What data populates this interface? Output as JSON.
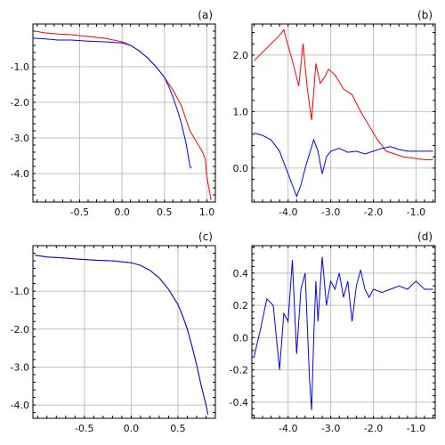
{
  "chart_data": [
    {
      "label": "(a)",
      "type": "line",
      "xlim": [
        -1.05,
        1.1
      ],
      "ylim": [
        -4.8,
        0.2
      ],
      "xticks": [
        -0.5,
        0.0,
        0.5,
        1.0
      ],
      "xtick_labels": [
        "-0.5",
        "0.0",
        "0.5",
        "1.0"
      ],
      "yticks": [
        -1.0,
        -2.0,
        -3.0,
        -4.0
      ],
      "ytick_labels": [
        "-1.0",
        "-2.0",
        "-3.0",
        "-4.0"
      ],
      "grid": true,
      "series": [
        {
          "color": "#ff0000",
          "x": [
            -1.03,
            -0.9,
            -0.75,
            -0.6,
            -0.4,
            -0.2,
            0.0,
            0.1,
            0.2,
            0.3,
            0.4,
            0.5,
            0.6,
            0.7,
            0.75,
            0.8,
            0.85,
            0.9,
            0.95,
            0.98,
            1.0,
            1.05
          ],
          "y": [
            0.0,
            -0.05,
            -0.08,
            -0.1,
            -0.15,
            -0.2,
            -0.3,
            -0.4,
            -0.55,
            -0.75,
            -1.0,
            -1.3,
            -1.65,
            -2.1,
            -2.45,
            -2.8,
            -3.0,
            -3.2,
            -3.4,
            -3.6,
            -4.1,
            -4.75
          ]
        },
        {
          "color": "#0000ff",
          "x": [
            -1.03,
            -0.9,
            -0.75,
            -0.6,
            -0.4,
            -0.2,
            0.0,
            0.1,
            0.2,
            0.3,
            0.4,
            0.5,
            0.55,
            0.6,
            0.65,
            0.7,
            0.75,
            0.78,
            0.8,
            0.82
          ],
          "y": [
            -0.2,
            -0.22,
            -0.25,
            -0.25,
            -0.28,
            -0.3,
            -0.33,
            -0.4,
            -0.55,
            -0.75,
            -1.0,
            -1.3,
            -1.55,
            -1.85,
            -2.2,
            -2.6,
            -3.1,
            -3.5,
            -3.8,
            -3.85
          ]
        }
      ]
    },
    {
      "label": "(b)",
      "type": "line",
      "xlim": [
        -4.85,
        -0.55
      ],
      "ylim": [
        -0.6,
        2.55
      ],
      "xticks": [
        -4.0,
        -3.0,
        -2.0,
        -1.0
      ],
      "xtick_labels": [
        "-4.0",
        "-3.0",
        "-2.0",
        "-1.0"
      ],
      "yticks": [
        0.0,
        1.0,
        2.0
      ],
      "ytick_labels": [
        "0.0",
        "1.0",
        "2.0"
      ],
      "grid": true,
      "series": [
        {
          "color": "#ff0000",
          "x": [
            -4.8,
            -4.6,
            -4.4,
            -4.2,
            -4.1,
            -4.05,
            -3.9,
            -3.75,
            -3.65,
            -3.55,
            -3.45,
            -3.35,
            -3.25,
            -3.15,
            -3.05,
            -2.9,
            -2.7,
            -2.5,
            -2.3,
            -2.1,
            -1.9,
            -1.7,
            -1.5,
            -1.3,
            -1.1,
            -0.8,
            -0.6
          ],
          "y": [
            1.9,
            2.05,
            2.2,
            2.35,
            2.45,
            2.3,
            1.9,
            1.45,
            2.2,
            1.4,
            0.85,
            1.85,
            1.5,
            1.6,
            1.75,
            1.65,
            1.4,
            1.3,
            1.0,
            0.75,
            0.5,
            0.3,
            0.25,
            0.2,
            0.18,
            0.15,
            0.15
          ]
        },
        {
          "color": "#0000ff",
          "x": [
            -4.8,
            -4.6,
            -4.4,
            -4.2,
            -4.05,
            -3.9,
            -3.8,
            -3.7,
            -3.6,
            -3.5,
            -3.4,
            -3.3,
            -3.2,
            -3.1,
            -3.0,
            -2.8,
            -2.6,
            -2.4,
            -2.2,
            -2.0,
            -1.8,
            -1.6,
            -1.4,
            -1.2,
            -1.0,
            -0.8,
            -0.6
          ],
          "y": [
            0.62,
            0.58,
            0.5,
            0.3,
            0.0,
            -0.3,
            -0.5,
            -0.3,
            0.0,
            0.25,
            0.5,
            0.3,
            -0.1,
            0.2,
            0.3,
            0.35,
            0.28,
            0.3,
            0.25,
            0.3,
            0.35,
            0.38,
            0.33,
            0.3,
            0.3,
            0.3,
            0.3
          ]
        }
      ]
    },
    {
      "label": "(c)",
      "type": "line",
      "xlim": [
        -1.05,
        0.9
      ],
      "ylim": [
        -4.35,
        0.2
      ],
      "xticks": [
        -0.5,
        0.0,
        0.5
      ],
      "xtick_labels": [
        "-0.5",
        "0.0",
        "0.5"
      ],
      "yticks": [
        -1.0,
        -2.0,
        -3.0,
        -4.0
      ],
      "ytick_labels": [
        "-1.0",
        "-2.0",
        "-3.0",
        "-4.0"
      ],
      "grid": true,
      "series": [
        {
          "color": "#ff0000",
          "x": [
            -1.03,
            -0.9,
            -0.75,
            -0.6,
            -0.4,
            -0.2,
            0.0,
            0.1,
            0.2,
            0.3,
            0.4,
            0.5,
            0.55,
            0.6,
            0.65,
            0.7,
            0.75,
            0.8,
            0.82
          ],
          "y": [
            -0.05,
            -0.1,
            -0.12,
            -0.15,
            -0.18,
            -0.2,
            -0.25,
            -0.32,
            -0.45,
            -0.65,
            -0.95,
            -1.35,
            -1.65,
            -2.0,
            -2.45,
            -2.95,
            -3.5,
            -4.0,
            -4.25
          ]
        },
        {
          "color": "#0000ff",
          "x": [
            -1.03,
            -0.9,
            -0.75,
            -0.6,
            -0.4,
            -0.2,
            0.0,
            0.1,
            0.2,
            0.3,
            0.4,
            0.5,
            0.55,
            0.6,
            0.65,
            0.7,
            0.75,
            0.8,
            0.82
          ],
          "y": [
            -0.05,
            -0.1,
            -0.12,
            -0.15,
            -0.18,
            -0.2,
            -0.25,
            -0.32,
            -0.45,
            -0.65,
            -0.95,
            -1.35,
            -1.65,
            -2.0,
            -2.45,
            -2.95,
            -3.5,
            -4.0,
            -4.25
          ]
        }
      ]
    },
    {
      "label": "(d)",
      "type": "line",
      "xlim": [
        -4.85,
        -0.55
      ],
      "ylim": [
        -0.5,
        0.57
      ],
      "xticks": [
        -4.0,
        -3.0,
        -2.0,
        -1.0
      ],
      "xtick_labels": [
        "-4.0",
        "-3.0",
        "-2.0",
        "-1.0"
      ],
      "yticks": [
        -0.4,
        -0.2,
        0.0,
        0.2,
        0.4
      ],
      "ytick_labels": [
        "-0.4",
        "-0.2",
        "0.0",
        "0.2",
        "0.4"
      ],
      "grid": true,
      "series": [
        {
          "color": "#0000ff",
          "x": [
            -4.8,
            -4.65,
            -4.5,
            -4.35,
            -4.2,
            -4.1,
            -4.0,
            -3.9,
            -3.8,
            -3.7,
            -3.6,
            -3.5,
            -3.45,
            -3.4,
            -3.35,
            -3.3,
            -3.2,
            -3.1,
            -3.0,
            -2.9,
            -2.8,
            -2.7,
            -2.6,
            -2.5,
            -2.4,
            -2.3,
            -2.2,
            -2.1,
            -2.0,
            -1.8,
            -1.6,
            -1.4,
            -1.2,
            -1.0,
            -0.8,
            -0.6
          ],
          "y": [
            -0.12,
            0.05,
            0.24,
            0.2,
            -0.2,
            0.15,
            0.1,
            0.48,
            -0.1,
            0.3,
            0.4,
            -0.25,
            -0.45,
            0.0,
            0.35,
            0.1,
            0.5,
            0.2,
            0.35,
            0.3,
            0.4,
            0.25,
            0.35,
            0.1,
            0.32,
            0.42,
            0.3,
            0.25,
            0.3,
            0.28,
            0.3,
            0.32,
            0.3,
            0.35,
            0.3,
            0.3
          ]
        }
      ]
    }
  ]
}
